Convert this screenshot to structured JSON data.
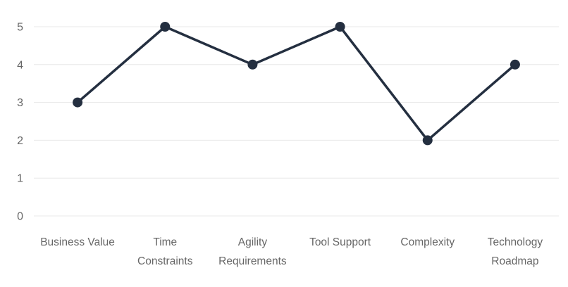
{
  "chart_data": {
    "type": "line",
    "categories": [
      "Business Value",
      "Time Constraints",
      "Agility Requirements",
      "Tool Support",
      "Complexity",
      "Technology Roadmap"
    ],
    "values": [
      3,
      5,
      4,
      5,
      2,
      4
    ],
    "title": "",
    "xlabel": "",
    "ylabel": "",
    "ylim": [
      0,
      5
    ],
    "yticks": [
      0,
      1,
      2,
      3,
      4,
      5
    ],
    "grid": true,
    "legend": false,
    "label_lines": [
      [
        "Business Value"
      ],
      [
        "Time",
        "Constraints"
      ],
      [
        "Agility",
        "Requirements"
      ],
      [
        "Tool Support"
      ],
      [
        "Complexity"
      ],
      [
        "Technology",
        "Roadmap"
      ]
    ],
    "colors": {
      "line": "#242f40",
      "marker": "#242f40",
      "grid": "#e8e8e8",
      "tick_text": "#666666",
      "background": "#ffffff"
    },
    "marker_style": "filled-circle"
  }
}
